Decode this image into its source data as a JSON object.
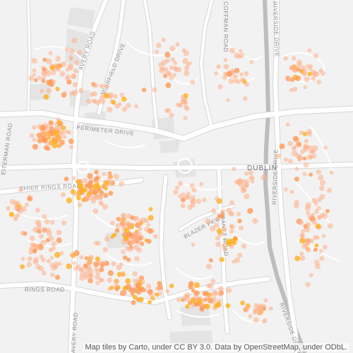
{
  "map": {
    "place_label": "DUBLIN",
    "road_labels": {
      "avery_road_north": "AVERY ROAD",
      "muirfield_drive": "MUIRFIELD DRIVE",
      "perimeter_drive": "PERIMETER DRIVE",
      "coffman_road": "COFFMAN ROAD",
      "riverside_drive_north": "RIVERSIDE DRIVE",
      "riverside_drive_mid": "RIVERSIDE DRIVE",
      "riverside_drive_south": "RIVERSIDE DRIVE",
      "shier_rings_road": "SHIER RINGS ROAD",
      "blazer_pkwy": "BLAZER PKWY",
      "frantz_road": "FRANTZ ROAD",
      "rings_road": "RINGS ROAD",
      "avery_road_south": "AVERY ROAD",
      "eiterman_road": "EITERMAN ROAD"
    },
    "colors": {
      "background": "#f2f2f2",
      "road": "#ffffff",
      "road_casing": "#d9d9d9",
      "building": "#e2e2e2",
      "river": "#b9b9b9",
      "point_low": "#ffb08a",
      "point_mid": "#ff9a55",
      "point_high": "#ffb01e"
    }
  },
  "attribution": "Map tiles by Carto, under CC BY 3.0. Data by OpenStreetMap, under ODbL."
}
